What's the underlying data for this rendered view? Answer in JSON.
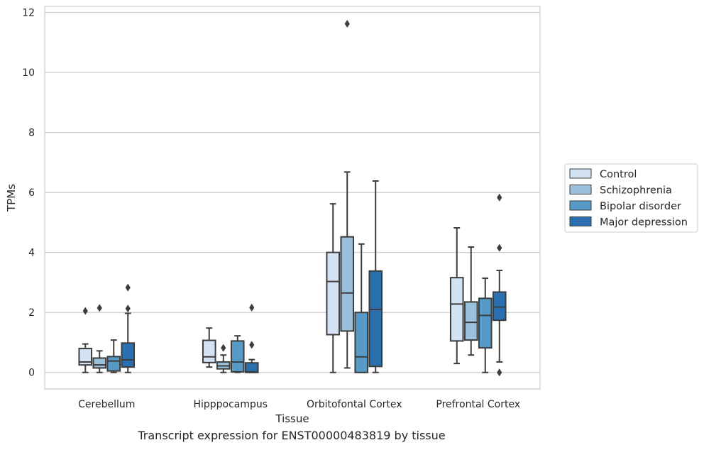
{
  "caption": "Transcript expression for ENST00000483819 by tissue",
  "chart_data": {
    "type": "box",
    "xlabel": "Tissue",
    "ylabel": "TPMs",
    "ylim": [
      -0.55,
      12.2
    ],
    "yticks": [
      0,
      2,
      4,
      6,
      8,
      10,
      12
    ],
    "grid": "horizontal",
    "legend_position": "right",
    "categories": [
      "Cerebellum",
      "Hipppocampus",
      "Orbitofontal Cortex",
      "Prefrontal Cortex"
    ],
    "series": [
      {
        "name": "Control",
        "color": "#d3e3f3",
        "boxes": [
          {
            "whislo": 0.0,
            "q1": 0.25,
            "med": 0.35,
            "q3": 0.8,
            "whishi": 0.95,
            "fliers": [
              2.05
            ]
          },
          {
            "whislo": 0.18,
            "q1": 0.33,
            "med": 0.52,
            "q3": 1.07,
            "whishi": 1.48,
            "fliers": []
          },
          {
            "whislo": 0.0,
            "q1": 1.26,
            "med": 3.03,
            "q3": 4.0,
            "whishi": 5.62,
            "fliers": []
          },
          {
            "whislo": 0.3,
            "q1": 1.05,
            "med": 2.28,
            "q3": 3.16,
            "whishi": 4.82,
            "fliers": []
          }
        ]
      },
      {
        "name": "Schizophrenia",
        "color": "#9ac0db",
        "boxes": [
          {
            "whislo": 0.0,
            "q1": 0.15,
            "med": 0.25,
            "q3": 0.48,
            "whishi": 0.72,
            "fliers": [
              2.15
            ]
          },
          {
            "whislo": 0.0,
            "q1": 0.12,
            "med": 0.22,
            "q3": 0.35,
            "whishi": 0.58,
            "fliers": [
              0.82
            ]
          },
          {
            "whislo": 0.15,
            "q1": 1.38,
            "med": 2.65,
            "q3": 4.52,
            "whishi": 6.68,
            "fliers": [
              11.62
            ]
          },
          {
            "whislo": 0.58,
            "q1": 1.08,
            "med": 1.67,
            "q3": 2.35,
            "whishi": 4.18,
            "fliers": []
          }
        ]
      },
      {
        "name": "Bipolar disorder",
        "color": "#5799c7",
        "boxes": [
          {
            "whislo": 0.0,
            "q1": 0.05,
            "med": 0.38,
            "q3": 0.53,
            "whishi": 1.08,
            "fliers": []
          },
          {
            "whislo": 0.0,
            "q1": 0.02,
            "med": 0.35,
            "q3": 1.05,
            "whishi": 1.22,
            "fliers": []
          },
          {
            "whislo": 0.0,
            "q1": 0.0,
            "med": 0.52,
            "q3": 2.0,
            "whishi": 4.28,
            "fliers": []
          },
          {
            "whislo": 0.0,
            "q1": 0.82,
            "med": 1.9,
            "q3": 2.47,
            "whishi": 3.14,
            "fliers": []
          }
        ]
      },
      {
        "name": "Major depression",
        "color": "#2a6fb0",
        "boxes": [
          {
            "whislo": 0.0,
            "q1": 0.18,
            "med": 0.42,
            "q3": 0.98,
            "whishi": 1.97,
            "fliers": [
              2.13,
              2.83
            ]
          },
          {
            "whislo": 0.0,
            "q1": 0.0,
            "med": 0.02,
            "q3": 0.32,
            "whishi": 0.43,
            "fliers": [
              0.92,
              2.16
            ]
          },
          {
            "whislo": 0.0,
            "q1": 0.2,
            "med": 2.1,
            "q3": 3.38,
            "whishi": 6.38,
            "fliers": []
          },
          {
            "whislo": 0.35,
            "q1": 1.74,
            "med": 2.18,
            "q3": 2.68,
            "whishi": 3.4,
            "fliers": [
              0.0,
              4.15,
              5.83
            ]
          }
        ]
      }
    ]
  }
}
